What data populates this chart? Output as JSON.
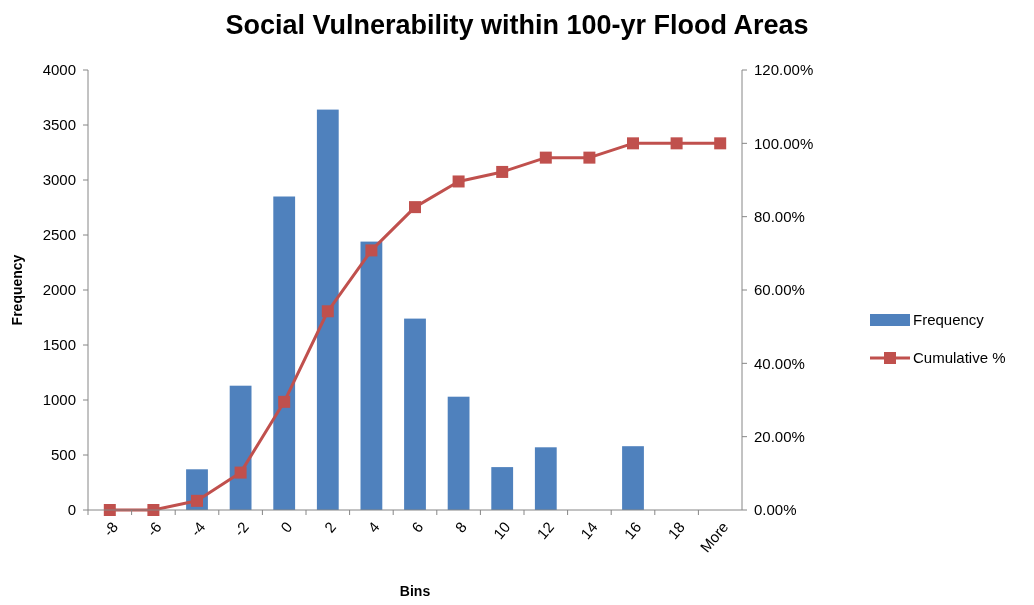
{
  "chart_data": {
    "type": "bar",
    "title": "Social Vulnerability within 100-yr Flood Areas",
    "xlabel": "Bins",
    "ylabel": "Frequency",
    "categories": [
      "-8",
      "-6",
      "-4",
      "-2",
      "0",
      "2",
      "4",
      "6",
      "8",
      "10",
      "12",
      "14",
      "16",
      "18",
      "More"
    ],
    "series": [
      {
        "name": "Frequency",
        "color": "#4f81bd",
        "values": [
          0,
          0,
          370,
          1130,
          2850,
          3640,
          2440,
          1740,
          1030,
          390,
          570,
          0,
          580,
          0,
          0
        ]
      },
      {
        "name": "Cumulative %",
        "type": "line",
        "axis": "y2",
        "color": "#c0504d",
        "marker": "square",
        "values": [
          0,
          0,
          2.5,
          10.2,
          29.5,
          54.2,
          70.8,
          82.6,
          89.6,
          92.2,
          96.1,
          96.1,
          100,
          100,
          100
        ]
      }
    ],
    "ylim": [
      0,
      4000
    ],
    "yticks": [
      0,
      500,
      1000,
      1500,
      2000,
      2500,
      3000,
      3500,
      4000
    ],
    "y2lim": [
      0,
      120
    ],
    "y2ticks": [
      {
        "value": 0,
        "label": "0.00%"
      },
      {
        "value": 20,
        "label": "20.00%"
      },
      {
        "value": 40,
        "label": "40.00%"
      },
      {
        "value": 60,
        "label": "60.00%"
      },
      {
        "value": 80,
        "label": "80.00%"
      },
      {
        "value": 100,
        "label": "100.00%"
      },
      {
        "value": 120,
        "label": "120.00%"
      }
    ],
    "legend": "right"
  }
}
